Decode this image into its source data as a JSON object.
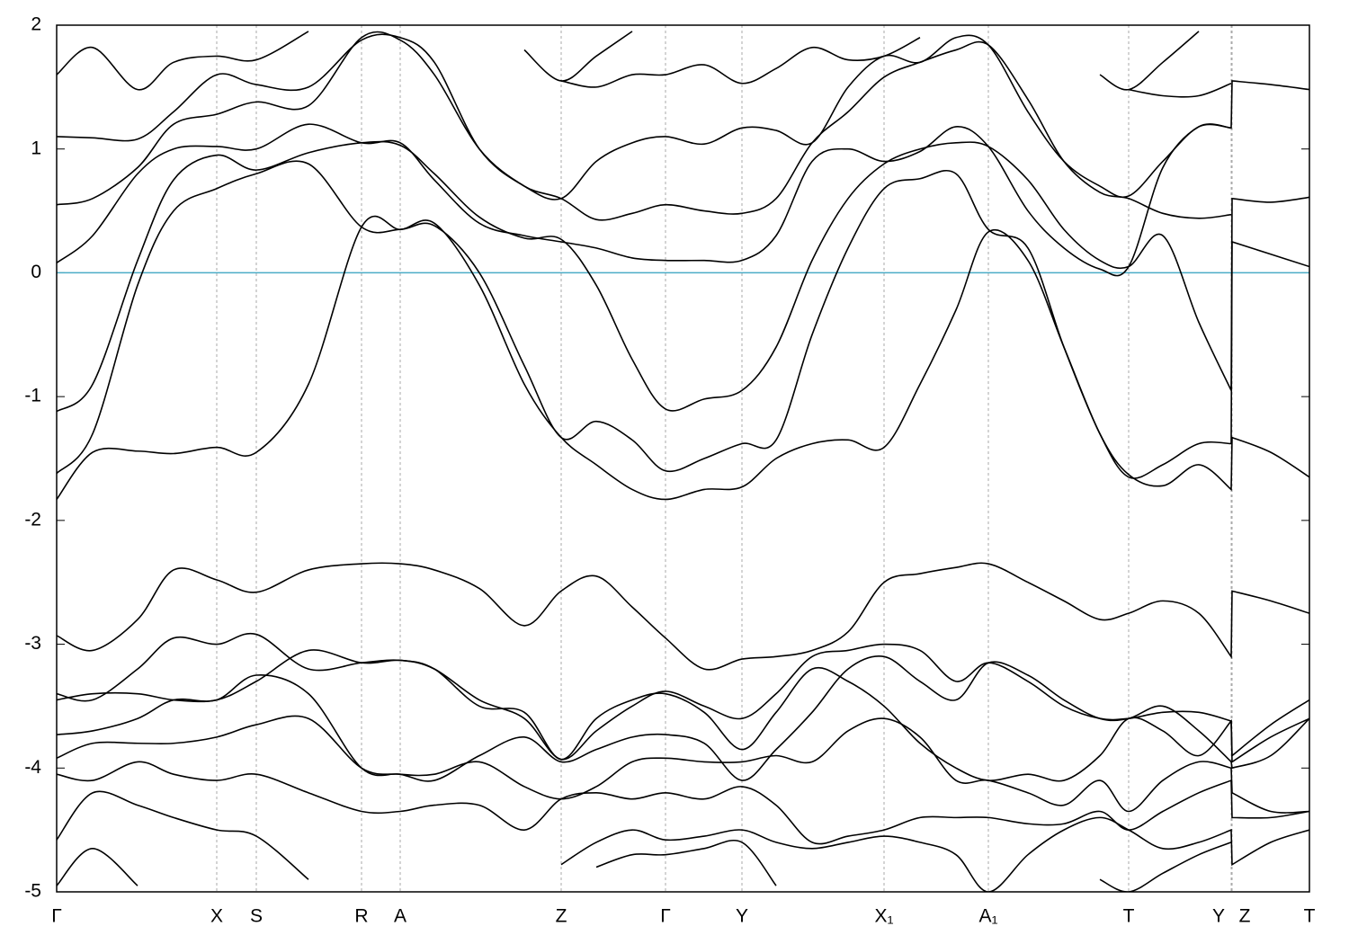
{
  "chart_data": {
    "type": "line",
    "color": "#000000",
    "grid": "x",
    "hline": {
      "value": 0,
      "color": "#4bacc6"
    },
    "xlim": [
      0,
      1393
    ],
    "xticks": [
      {
        "value": 0,
        "label": "Γ"
      },
      {
        "value": 178,
        "label": "X"
      },
      {
        "value": 222,
        "label": "S"
      },
      {
        "value": 339,
        "label": "R"
      },
      {
        "value": 382,
        "label": "A"
      },
      {
        "value": 561,
        "label": "Z"
      },
      {
        "value": 677,
        "label": "Γ"
      },
      {
        "value": 762,
        "label": "Y"
      },
      {
        "value": 920,
        "label": "X₁"
      },
      {
        "value": 1036,
        "label": "A₁"
      },
      {
        "value": 1192,
        "label": "T"
      },
      {
        "value": 1306,
        "label": "Y"
      },
      {
        "value": 1307,
        "label": "Z"
      },
      {
        "value": 1393,
        "label": "T"
      }
    ],
    "ylim": [
      -5,
      2
    ],
    "yticks": [
      -5,
      -4,
      -3,
      -2,
      -1,
      0,
      1,
      2
    ],
    "x": [
      0,
      40,
      90,
      130,
      178,
      222,
      280,
      339,
      382,
      420,
      470,
      520,
      561,
      600,
      640,
      677,
      720,
      762,
      800,
      840,
      880,
      920,
      960,
      1000,
      1036,
      1080,
      1120,
      1160,
      1192,
      1230,
      1270,
      1306,
      1307,
      1350,
      1393
    ],
    "series": [
      {
        "values": [
          -1.83,
          -1.45,
          -1.44,
          -1.46,
          -1.41,
          -1.45,
          -0.9,
          0.37,
          0.35,
          0.4,
          -0.1,
          -0.9,
          -1.33,
          -1.55,
          -1.75,
          -1.83,
          -1.75,
          -1.73,
          -1.5,
          -1.38,
          -1.35,
          -1.41,
          -0.9,
          -0.3,
          0.33,
          0.1,
          -0.6,
          -1.3,
          -1.63,
          -1.72,
          -1.55,
          -1.75,
          -1.33,
          -1.45,
          -1.65
        ]
      },
      {
        "values": [
          -1.62,
          -1.3,
          -0.1,
          0.5,
          0.68,
          0.8,
          0.88,
          0.37,
          0.35,
          0.38,
          0.0,
          -0.75,
          -1.33,
          -1.2,
          -1.35,
          -1.6,
          -1.5,
          -1.38,
          -1.35,
          -0.5,
          0.2,
          0.68,
          0.76,
          0.8,
          0.35,
          0.2,
          -0.6,
          -1.3,
          -1.65,
          -1.55,
          -1.38,
          -1.38,
          0.25,
          0.15,
          0.05
        ]
      },
      {
        "values": [
          -1.12,
          -0.9,
          0.1,
          0.75,
          0.95,
          0.83,
          0.97,
          1.05,
          1.03,
          0.8,
          0.45,
          0.28,
          0.27,
          -0.1,
          -0.7,
          -1.1,
          -1.02,
          -0.95,
          -0.6,
          0.1,
          0.6,
          0.88,
          1.0,
          1.05,
          1.02,
          0.75,
          0.35,
          0.1,
          0.05,
          0.3,
          -0.4,
          -0.95,
          0.6,
          0.57,
          0.61
        ]
      },
      {
        "values": [
          0.08,
          0.3,
          0.8,
          1.0,
          1.02,
          1.0,
          1.2,
          1.05,
          1.05,
          0.75,
          0.4,
          0.3,
          0.25,
          0.2,
          0.12,
          0.1,
          0.1,
          0.1,
          0.3,
          0.9,
          1.0,
          0.9,
          0.98,
          1.18,
          1.02,
          0.5,
          0.2,
          0.03,
          0.05,
          0.85,
          1.18,
          1.17,
          1.55,
          1.52,
          1.48
        ]
      },
      {
        "values": [
          0.55,
          0.6,
          0.85,
          1.2,
          1.28,
          1.38,
          1.35,
          1.9,
          1.88,
          1.6,
          1.0,
          0.7,
          0.6,
          0.43,
          0.48,
          0.55,
          0.5,
          0.48,
          0.6,
          1.05,
          1.3,
          1.58,
          1.7,
          1.8,
          1.84,
          1.4,
          0.9,
          0.65,
          0.6,
          0.48,
          0.44,
          0.47,
          null,
          null,
          null
        ]
      },
      {
        "values": [
          1.1,
          1.09,
          1.08,
          1.3,
          1.6,
          1.52,
          1.5,
          1.88,
          1.9,
          1.7,
          1.0,
          0.7,
          0.6,
          0.9,
          1.05,
          1.1,
          1.04,
          1.17,
          1.15,
          1.05,
          1.5,
          1.75,
          1.7,
          1.9,
          1.84,
          1.3,
          0.9,
          0.7,
          0.62,
          0.9,
          1.18,
          1.17,
          null,
          null,
          null
        ]
      },
      {
        "values": [
          1.6,
          1.82,
          1.48,
          1.7,
          1.75,
          1.72,
          1.95,
          null,
          null,
          null,
          null,
          null,
          1.55,
          1.5,
          1.6,
          1.6,
          1.68,
          1.53,
          1.65,
          1.82,
          1.72,
          1.75,
          1.9,
          null,
          null,
          null,
          null,
          null,
          1.48,
          1.43,
          1.43,
          1.53,
          null,
          null,
          null
        ]
      },
      {
        "values": [
          null,
          null,
          null,
          null,
          null,
          null,
          null,
          null,
          null,
          null,
          null,
          1.8,
          1.55,
          1.75,
          1.95,
          null,
          null,
          null,
          null,
          null,
          null,
          null,
          null,
          null,
          null,
          null,
          null,
          1.6,
          1.48,
          1.7,
          1.95,
          null,
          null,
          null,
          null
        ]
      },
      {
        "values": [
          -2.93,
          -3.05,
          -2.8,
          -2.4,
          -2.48,
          -2.58,
          -2.4,
          -2.35,
          -2.35,
          -2.4,
          -2.55,
          -2.85,
          -2.57,
          -2.45,
          -2.7,
          -2.95,
          -3.2,
          -3.12,
          -3.1,
          -3.05,
          -2.9,
          -2.5,
          -2.43,
          -2.38,
          -2.35,
          -2.5,
          -2.65,
          -2.8,
          -2.75,
          -2.65,
          -2.75,
          -3.1,
          -2.57,
          -2.65,
          -2.75
        ]
      },
      {
        "values": [
          -3.4,
          -3.45,
          -3.2,
          -2.95,
          -3.0,
          -2.92,
          -3.2,
          -3.15,
          -3.13,
          -3.2,
          -3.45,
          -3.6,
          -3.93,
          -3.7,
          -3.5,
          -3.38,
          -3.5,
          -3.6,
          -3.4,
          -3.1,
          -3.05,
          -3.0,
          -3.05,
          -3.3,
          -3.15,
          -3.3,
          -3.5,
          -3.6,
          -3.6,
          -3.55,
          -3.55,
          -3.62,
          -3.95,
          -3.75,
          -3.6
        ]
      },
      {
        "values": [
          -3.45,
          -3.4,
          -3.4,
          -3.45,
          -3.45,
          -3.3,
          -3.05,
          -3.15,
          -3.13,
          -3.2,
          -3.5,
          -3.55,
          -3.93,
          -3.6,
          -3.45,
          -3.4,
          -3.55,
          -3.85,
          -3.55,
          -3.2,
          -3.3,
          -3.5,
          -3.8,
          -4.0,
          -4.1,
          -4.05,
          -4.1,
          -3.9,
          -3.6,
          -3.7,
          -3.9,
          -3.62,
          -3.9,
          -3.65,
          -3.45
        ]
      },
      {
        "values": [
          -3.73,
          -3.7,
          -3.6,
          -3.45,
          -3.45,
          -3.25,
          -3.4,
          -4.0,
          -4.05,
          -4.1,
          -3.9,
          -3.75,
          -3.95,
          -3.85,
          -3.75,
          -3.73,
          -3.8,
          -4.1,
          -3.85,
          -3.55,
          -3.2,
          -3.1,
          -3.3,
          -3.45,
          -3.15,
          -3.25,
          -3.45,
          -3.6,
          -3.6,
          -3.5,
          -3.7,
          -3.95,
          -4.0,
          -3.9,
          -3.6
        ]
      },
      {
        "values": [
          -3.92,
          -3.8,
          -3.8,
          -3.8,
          -3.75,
          -3.65,
          -3.6,
          -4.0,
          -4.05,
          -4.05,
          -3.95,
          -4.15,
          -4.25,
          -4.15,
          -3.95,
          -3.92,
          -3.95,
          -3.95,
          -3.9,
          -3.95,
          -3.7,
          -3.6,
          -3.75,
          -4.1,
          -4.1,
          -4.2,
          -4.3,
          -4.1,
          -4.35,
          -4.1,
          -3.95,
          -4.0,
          -4.2,
          -4.35,
          -4.35
        ]
      },
      {
        "values": [
          -4.05,
          -4.1,
          -3.95,
          -4.05,
          -4.1,
          -4.05,
          -4.2,
          -4.35,
          -4.35,
          -4.3,
          -4.3,
          -4.5,
          -4.25,
          -4.2,
          -4.25,
          -4.2,
          -4.25,
          -4.15,
          -4.3,
          -4.6,
          -4.55,
          -4.5,
          -4.4,
          -4.4,
          -4.4,
          -4.45,
          -4.45,
          -4.35,
          -4.5,
          -4.35,
          -4.2,
          -4.1,
          -4.4,
          -4.4,
          -4.35
        ]
      },
      {
        "values": [
          -4.58,
          -4.2,
          -4.3,
          -4.4,
          -4.5,
          -4.55,
          -4.9,
          null,
          null,
          null,
          null,
          null,
          -4.78,
          -4.6,
          -4.5,
          -4.58,
          -4.55,
          -4.5,
          -4.6,
          -4.65,
          -4.6,
          -4.55,
          -4.6,
          -4.7,
          -5.0,
          -4.7,
          -4.5,
          -4.4,
          -4.5,
          -4.65,
          -4.6,
          -4.5,
          -4.78,
          -4.6,
          -4.5
        ]
      },
      {
        "values": [
          -4.95,
          -4.65,
          -4.95,
          null,
          null,
          null,
          null,
          null,
          null,
          null,
          null,
          null,
          null,
          -4.8,
          -4.7,
          -4.7,
          -4.65,
          -4.6,
          -4.95,
          null,
          null,
          null,
          null,
          null,
          null,
          null,
          null,
          -4.9,
          -5.0,
          -4.85,
          -4.7,
          -4.6,
          null,
          null,
          null
        ]
      }
    ]
  }
}
